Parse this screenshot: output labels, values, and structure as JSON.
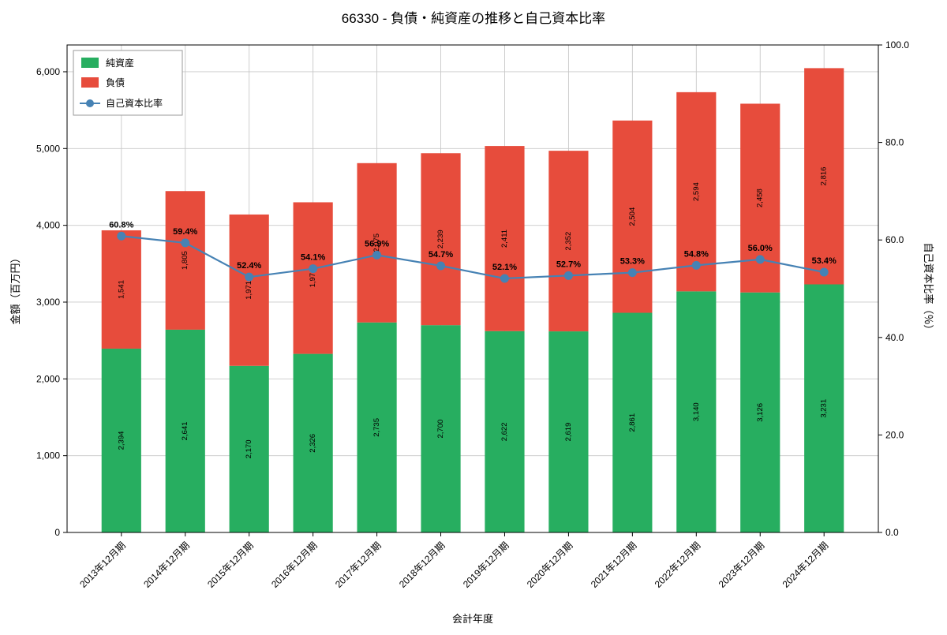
{
  "chart_data": {
    "type": "bar",
    "stacked": true,
    "title": "66330 - 負債・純資産の推移と自己資本比率",
    "xlabel": "会計年度",
    "ylabel_left": "金額（百万円）",
    "ylabel_right": "自己資本比率（％）",
    "categories": [
      "2013年12月期",
      "2014年12月期",
      "2015年12月期",
      "2016年12月期",
      "2017年12月期",
      "2018年12月期",
      "2019年12月期",
      "2020年12月期",
      "2021年12月期",
      "2022年12月期",
      "2023年12月期",
      "2024年12月期"
    ],
    "series": [
      {
        "name": "純資産",
        "color": "#27ae60",
        "values": [
          2394,
          2641,
          2170,
          2326,
          2735,
          2700,
          2622,
          2619,
          2861,
          3140,
          3126,
          3231
        ]
      },
      {
        "name": "負債",
        "color": "#e74c3c",
        "values": [
          1541,
          1805,
          1971,
          1974,
          2075,
          2239,
          2411,
          2352,
          2504,
          2594,
          2458,
          2816
        ]
      }
    ],
    "line_series": {
      "name": "自己資本比率",
      "color": "#4682b4",
      "axis": "right",
      "unit": "%",
      "values": [
        60.8,
        59.4,
        52.4,
        54.1,
        56.9,
        54.7,
        52.1,
        52.7,
        53.3,
        54.8,
        56.0,
        53.4
      ]
    },
    "left_axis": {
      "min": 0,
      "max": 6349,
      "ticks": [
        0,
        1000,
        2000,
        3000,
        4000,
        5000,
        6000
      ]
    },
    "right_axis": {
      "min": 0,
      "max": 100,
      "ticks": [
        0,
        20,
        40,
        60,
        80,
        100
      ]
    },
    "grid": true,
    "legend_position": "upper left"
  }
}
